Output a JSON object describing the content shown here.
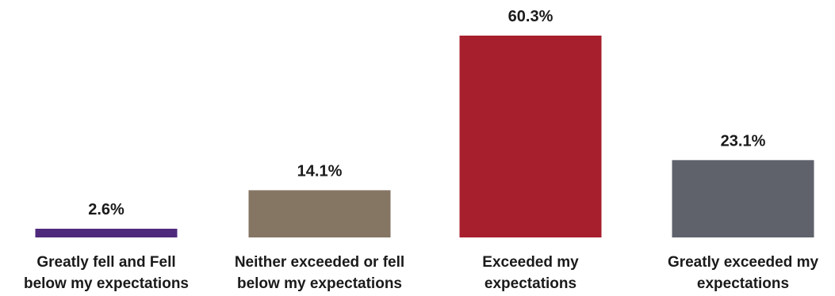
{
  "chart_data": {
    "type": "bar",
    "categories": [
      [
        "Greatly fell and Fell",
        "below my expectations"
      ],
      [
        "Neither exceeded or fell",
        "below my expectations"
      ],
      [
        "Exceeded my",
        "expectations"
      ],
      [
        "Greatly exceeded my",
        "expectations"
      ]
    ],
    "values": [
      2.6,
      14.1,
      60.3,
      23.1
    ],
    "value_labels": [
      "2.6%",
      "14.1%",
      "60.3%",
      "23.1%"
    ],
    "colors": [
      "#4f2a7c",
      "#857563",
      "#a71e2c",
      "#5f626b"
    ],
    "ylim": [
      0,
      60.3
    ],
    "grid": false,
    "legend": "none",
    "title": "",
    "xlabel": "",
    "ylabel": ""
  }
}
